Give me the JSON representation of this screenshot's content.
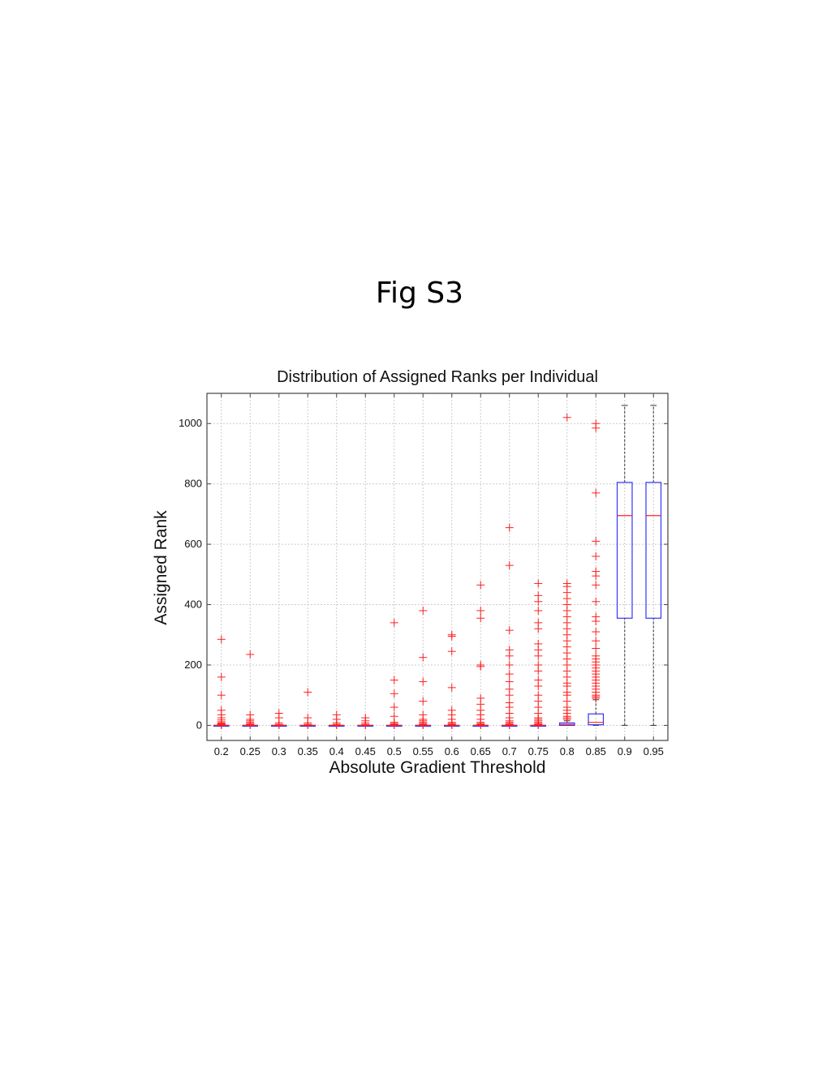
{
  "figure_label": "Fig S3",
  "chart_data": {
    "type": "box",
    "title": "Distribution of Assigned Ranks per Individual",
    "xlabel": "Absolute Gradient Threshold",
    "ylabel": "Assigned Rank",
    "ylim": [
      -50,
      1100
    ],
    "yticks": [
      0,
      200,
      400,
      600,
      800,
      1000
    ],
    "grid": true,
    "colors": {
      "box": "#3333ff",
      "median": "#ff2020",
      "outlier": "#ff2020",
      "whisker": "#333333",
      "grid": "#cccccc"
    },
    "categories": [
      "0.2",
      "0.25",
      "0.3",
      "0.35",
      "0.4",
      "0.45",
      "0.5",
      "0.55",
      "0.6",
      "0.65",
      "0.7",
      "0.75",
      "0.8",
      "0.85",
      "0.9",
      "0.95"
    ],
    "boxes": [
      {
        "q1": 0,
        "median": 0,
        "q3": 0,
        "whisker_low": 0,
        "whisker_high": 0,
        "outliers": [
          1,
          2,
          3,
          5,
          8,
          12,
          18,
          25,
          35,
          50,
          100,
          160,
          285
        ]
      },
      {
        "q1": 0,
        "median": 0,
        "q3": 0,
        "whisker_low": 0,
        "whisker_high": 0,
        "outliers": [
          1,
          3,
          6,
          10,
          15,
          20,
          35,
          235
        ]
      },
      {
        "q1": 0,
        "median": 0,
        "q3": 0,
        "whisker_low": 0,
        "whisker_high": 0,
        "outliers": [
          1,
          3,
          8,
          25,
          40
        ]
      },
      {
        "q1": 0,
        "median": 0,
        "q3": 0,
        "whisker_low": 0,
        "whisker_high": 0,
        "outliers": [
          1,
          3,
          8,
          25,
          110
        ]
      },
      {
        "q1": 0,
        "median": 0,
        "q3": 0,
        "whisker_low": 0,
        "whisker_high": 0,
        "outliers": [
          1,
          3,
          8,
          20,
          35
        ]
      },
      {
        "q1": 0,
        "median": 0,
        "q3": 0,
        "whisker_low": 0,
        "whisker_high": 0,
        "outliers": [
          1,
          3,
          8,
          15,
          25
        ]
      },
      {
        "q1": 0,
        "median": 0,
        "q3": 0,
        "whisker_low": 0,
        "whisker_high": 0,
        "outliers": [
          1,
          3,
          6,
          10,
          30,
          60,
          105,
          150,
          340
        ]
      },
      {
        "q1": 0,
        "median": 0,
        "q3": 0,
        "whisker_low": 0,
        "whisker_high": 0,
        "outliers": [
          1,
          3,
          6,
          10,
          15,
          20,
          35,
          80,
          145,
          225,
          380
        ]
      },
      {
        "q1": 0,
        "median": 0,
        "q3": 0,
        "whisker_low": 0,
        "whisker_high": 0,
        "outliers": [
          1,
          3,
          6,
          10,
          20,
          35,
          50,
          125,
          245,
          295,
          300
        ]
      },
      {
        "q1": 0,
        "median": 0,
        "q3": 0,
        "whisker_low": 0,
        "whisker_high": 0,
        "outliers": [
          1,
          3,
          6,
          10,
          20,
          35,
          50,
          70,
          90,
          195,
          200,
          355,
          380,
          465
        ]
      },
      {
        "q1": 0,
        "median": 0,
        "q3": 0,
        "whisker_low": 0,
        "whisker_high": 0,
        "outliers": [
          1,
          3,
          6,
          10,
          15,
          25,
          40,
          60,
          75,
          100,
          120,
          145,
          170,
          200,
          230,
          250,
          315,
          530,
          655
        ]
      },
      {
        "q1": 0,
        "median": 0,
        "q3": 0,
        "whisker_low": 0,
        "whisker_high": 0,
        "outliers": [
          1,
          3,
          6,
          10,
          15,
          20,
          25,
          40,
          60,
          80,
          100,
          130,
          150,
          180,
          200,
          230,
          250,
          270,
          320,
          340,
          380,
          410,
          430,
          470
        ]
      },
      {
        "q1": 0,
        "median": 3,
        "q3": 8,
        "whisker_low": 0,
        "whisker_high": 15,
        "outliers": [
          20,
          25,
          30,
          40,
          50,
          60,
          80,
          100,
          110,
          130,
          140,
          160,
          180,
          200,
          220,
          240,
          260,
          280,
          300,
          320,
          340,
          360,
          380,
          400,
          420,
          440,
          460,
          470,
          1020
        ]
      },
      {
        "q1": 2,
        "median": 10,
        "q3": 38,
        "whisker_low": 0,
        "whisker_high": 85,
        "outliers": [
          90,
          95,
          100,
          110,
          120,
          130,
          140,
          150,
          160,
          170,
          180,
          190,
          200,
          210,
          220,
          230,
          255,
          280,
          310,
          345,
          360,
          410,
          465,
          495,
          510,
          560,
          610,
          770,
          985,
          1000
        ]
      },
      {
        "q1": 355,
        "median": 695,
        "q3": 805,
        "whisker_low": 0,
        "whisker_high": 1060,
        "outliers": []
      },
      {
        "q1": 355,
        "median": 695,
        "q3": 805,
        "whisker_low": 0,
        "whisker_high": 1060,
        "outliers": []
      }
    ]
  }
}
